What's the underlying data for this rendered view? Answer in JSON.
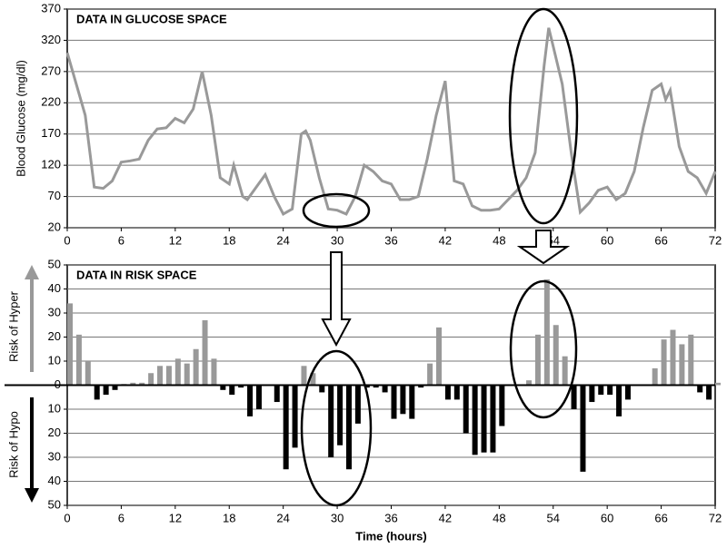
{
  "chart_data": [
    {
      "type": "line",
      "title": "DATA IN GLUCOSE SPACE",
      "y_label": "Blood Glucose (mg/dl)",
      "x": [
        0,
        1,
        2,
        3,
        4,
        5,
        6,
        7,
        8,
        9,
        10,
        11,
        12,
        13,
        14,
        15,
        16,
        17,
        18,
        18.5,
        19.5,
        20,
        21,
        22,
        23,
        24,
        25,
        26,
        26.5,
        27,
        28,
        29,
        30,
        31,
        32,
        33,
        34,
        35,
        36,
        37,
        38,
        39,
        40,
        41,
        42,
        43,
        44,
        45,
        46,
        47,
        48,
        49,
        50,
        51,
        52,
        53,
        53.5,
        54,
        55,
        56,
        57,
        58,
        59,
        60,
        61,
        62,
        63,
        64,
        65,
        66,
        66.5,
        67,
        68,
        69,
        70,
        71,
        72
      ],
      "series": [
        {
          "name": "Blood Glucose",
          "color": "#999999",
          "values": [
            300,
            250,
            200,
            85,
            83,
            95,
            125,
            127,
            130,
            160,
            178,
            180,
            195,
            188,
            210,
            270,
            200,
            100,
            90,
            120,
            70,
            65,
            85,
            105,
            70,
            42,
            50,
            170,
            175,
            160,
            100,
            50,
            48,
            42,
            70,
            120,
            110,
            95,
            90,
            65,
            65,
            70,
            130,
            200,
            255,
            95,
            90,
            55,
            48,
            48,
            50,
            65,
            80,
            100,
            140,
            280,
            340,
            310,
            250,
            140,
            45,
            60,
            80,
            85,
            65,
            75,
            110,
            180,
            240,
            250,
            225,
            240,
            150,
            110,
            100,
            75,
            110
          ]
        }
      ],
      "xlim": [
        0,
        72
      ],
      "xticks": [
        0,
        6,
        12,
        18,
        24,
        30,
        36,
        42,
        48,
        54,
        60,
        66,
        72
      ],
      "ylim": [
        20,
        370
      ],
      "yticks": [
        20,
        70,
        120,
        170,
        220,
        270,
        320,
        370
      ],
      "grid": true
    },
    {
      "type": "bar",
      "title": "DATA IN RISK SPACE",
      "x_label": "Time (hours)",
      "annotations": [
        "Risk of  Hyper",
        "Risk of  Hypo"
      ],
      "x": [
        0,
        1,
        2,
        3,
        4,
        5,
        6,
        7,
        8,
        9,
        10,
        11,
        12,
        13,
        14,
        15,
        16,
        17,
        18,
        19,
        20,
        21,
        22,
        23,
        24,
        25,
        26,
        27,
        28,
        29,
        30,
        31,
        32,
        33,
        34,
        35,
        36,
        37,
        38,
        39,
        40,
        41,
        42,
        43,
        44,
        45,
        46,
        47,
        48,
        49,
        50,
        51,
        52,
        53,
        54,
        55,
        56,
        57,
        58,
        59,
        60,
        61,
        62,
        63,
        64,
        65,
        66,
        67,
        68,
        69,
        70,
        71,
        72
      ],
      "values": [
        34,
        21,
        10,
        -6,
        -4,
        -2,
        0.5,
        1,
        1,
        5,
        8,
        8,
        11,
        9,
        15,
        27,
        11,
        -2,
        -4,
        -1,
        -13,
        -10,
        0,
        -7,
        -35,
        -26,
        8,
        5,
        -3,
        -30,
        -25,
        -35,
        -16,
        -1,
        -1,
        -3,
        -14,
        -12,
        -14,
        -1,
        9,
        24,
        -6,
        -6,
        -20,
        -29,
        -28,
        -28,
        -17,
        0,
        0,
        2,
        21,
        44,
        25,
        12,
        -10,
        -36,
        -7,
        -4,
        -4,
        -13,
        -6,
        0,
        0,
        7,
        19,
        23,
        17,
        21,
        -3,
        -6,
        1
      ],
      "color_positive": "#999999",
      "color_negative": "#000000",
      "xlim": [
        0,
        72
      ],
      "xticks": [
        0,
        6,
        12,
        18,
        24,
        30,
        36,
        42,
        48,
        54,
        60,
        66,
        72
      ],
      "ylim": [
        -50,
        50
      ],
      "yticks": [
        {
          "value": -50,
          "label": "50"
        },
        {
          "value": -40,
          "label": "40"
        },
        {
          "value": -30,
          "label": "30"
        },
        {
          "value": -20,
          "label": "20"
        },
        {
          "value": -10,
          "label": "10"
        },
        0,
        10,
        20,
        30,
        40,
        50
      ],
      "grid": true
    }
  ]
}
